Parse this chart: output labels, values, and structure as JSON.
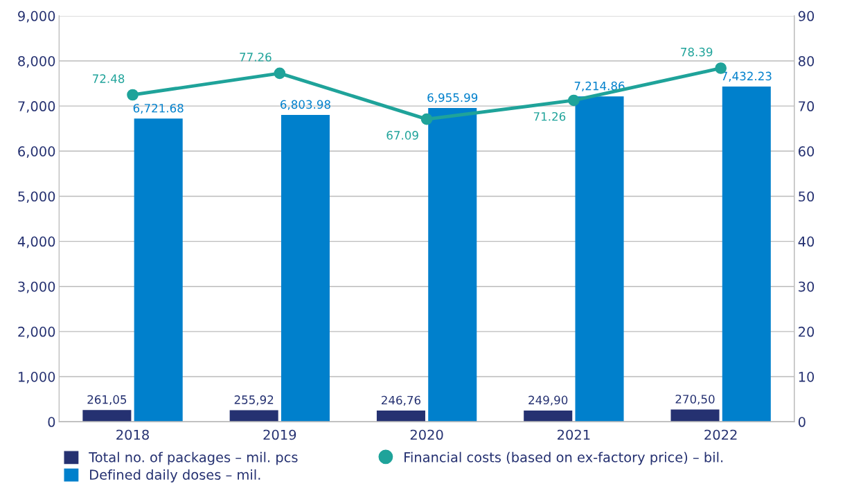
{
  "chart_data": {
    "type": "bar",
    "categories": [
      "2018",
      "2019",
      "2020",
      "2021",
      "2022"
    ],
    "series": [
      {
        "name": "Total no. of packages – mil. pcs",
        "color": "#253171",
        "values": [
          261.05,
          255.92,
          246.76,
          249.9,
          270.5
        ],
        "value_labels": [
          "261,05",
          "255,92",
          "246,76",
          "249,90",
          "270,50"
        ]
      },
      {
        "name": "Defined daily doses – mil.",
        "color": "#0080cc",
        "values": [
          6721.68,
          6803.98,
          6955.99,
          7214.86,
          7432.23
        ],
        "value_labels": [
          "6,721.68",
          "6,803.98",
          "6,955.99",
          "7,214.86",
          "7,432.23"
        ]
      },
      {
        "name": "Financial costs (based on ex-factory price) – bil.",
        "type": "line",
        "axis": "y2",
        "color": "#1fa39a",
        "marker": "circle",
        "values": [
          72.48,
          77.26,
          67.09,
          71.26,
          78.39
        ],
        "value_labels": [
          "72.48",
          "77.26",
          "67.09",
          "71.26",
          "78.39"
        ]
      }
    ],
    "ylim": [
      0,
      9000
    ],
    "yticks": [
      0,
      {
        "value": 1000,
        "label": "1,000"
      },
      {
        "value": 2000,
        "label": "2,000"
      },
      {
        "value": 3000,
        "label": "3,000"
      },
      {
        "value": 4000,
        "label": "4,000"
      },
      {
        "value": 5000,
        "label": "5,000"
      },
      {
        "value": 6000,
        "label": "6,000"
      },
      {
        "value": 7000,
        "label": "7,000"
      },
      {
        "value": 8000,
        "label": "8,000"
      },
      {
        "value": 9000,
        "label": "9,000"
      }
    ],
    "y2lim": [
      0,
      90
    ],
    "y2ticks": [
      0,
      10,
      20,
      30,
      40,
      50,
      60,
      70,
      80,
      90
    ],
    "grid": "y",
    "legend": "bottom"
  }
}
